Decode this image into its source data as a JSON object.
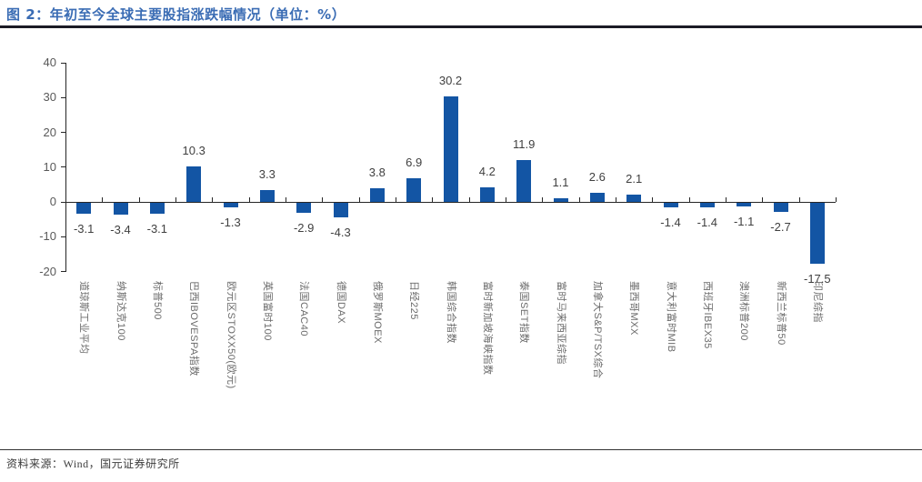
{
  "page": {
    "title": "图 2：年初至今全球主要股指涨跌幅情况（单位：%）",
    "footer_source": "资料来源：Wind，国元证券研究所"
  },
  "chart_data": {
    "type": "bar",
    "title": "年初至今全球主要股指涨跌幅情况",
    "unit": "%",
    "categories": [
      "道琼斯工业平均",
      "纳斯达克100",
      "标普500",
      "巴西IBOVESPA指数",
      "欧元区STOXX50(欧元)",
      "英国富时100",
      "法国CAC40",
      "德国DAX",
      "俄罗斯MOEX",
      "日经225",
      "韩国综合指数",
      "富时新加坡海峡指数",
      "泰国SET指数",
      "富时马来西亚综指",
      "加拿大S&P/TSX综合",
      "墨西哥MXX",
      "意大利富时MIB",
      "西班牙IBEX35",
      "澳洲标普200",
      "新西兰标普50",
      "印尼综指"
    ],
    "values": [
      -3.1,
      -3.4,
      -3.1,
      10.3,
      -1.3,
      3.3,
      -2.9,
      -4.3,
      3.8,
      6.9,
      30.2,
      4.2,
      11.9,
      1.1,
      2.6,
      2.1,
      -1.4,
      -1.4,
      -1.1,
      -2.7,
      -17.5
    ],
    "ylim": [
      -20,
      40
    ],
    "yticks": [
      40,
      30,
      20,
      10,
      0,
      -10,
      -20
    ],
    "bar_color": "#1355a4",
    "value_labels": true,
    "grid": false,
    "legend": "none"
  }
}
